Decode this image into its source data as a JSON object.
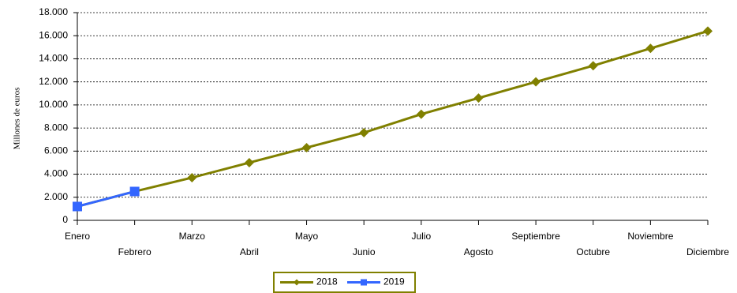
{
  "chart_data": {
    "type": "line",
    "y_label": "Millones de euros",
    "categories": [
      "Enero",
      "Febrero",
      "Marzo",
      "Abril",
      "Mayo",
      "Junio",
      "Julio",
      "Agosto",
      "Septiembre",
      "Octubre",
      "Noviembre",
      "Diciembre"
    ],
    "series": [
      {
        "name": "2018",
        "color": "#808000",
        "marker": "diamond",
        "values": [
          1200,
          2500,
          3700,
          5000,
          6300,
          7600,
          9200,
          10600,
          12000,
          13400,
          14900,
          16400
        ]
      },
      {
        "name": "2019",
        "color": "#3366ff",
        "marker": "square",
        "values": [
          1200,
          2500,
          null,
          null,
          null,
          null,
          null,
          null,
          null,
          null,
          null,
          null
        ]
      }
    ],
    "ylim": [
      0,
      18000
    ],
    "yticks": [
      0,
      {
        "value": 2000,
        "label": "2.000"
      },
      {
        "value": 4000,
        "label": "4.000"
      },
      {
        "value": 6000,
        "label": "6.000"
      },
      {
        "value": 8000,
        "label": "8.000"
      },
      {
        "value": 10000,
        "label": "10.000"
      },
      {
        "value": 12000,
        "label": "12.000"
      },
      {
        "value": 14000,
        "label": "14.000"
      },
      {
        "value": 16000,
        "label": "16.000"
      },
      {
        "value": 18000,
        "label": "18.000"
      }
    ],
    "grid": true,
    "legend": "bottom"
  }
}
